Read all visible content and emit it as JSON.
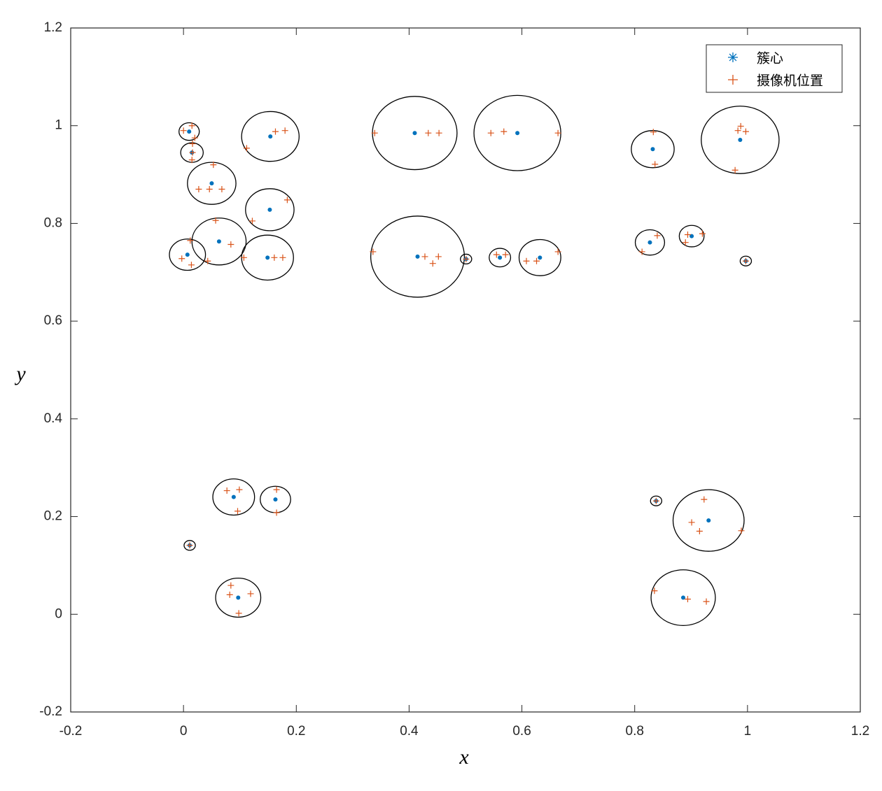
{
  "chart_data": {
    "type": "scatter",
    "xlabel": "x",
    "ylabel": "y",
    "xlim": [
      -0.2,
      1.2
    ],
    "ylim": [
      -0.2,
      1.2
    ],
    "xticks": [
      -0.2,
      0,
      0.2,
      0.4,
      0.6,
      0.8,
      1,
      1.2
    ],
    "yticks": [
      -0.2,
      0,
      0.2,
      0.4,
      0.6,
      0.8,
      1,
      1.2
    ],
    "legend": "upper right",
    "series": [
      {
        "name": "簇心",
        "color": "#0072bd",
        "marker": "*",
        "x": [
          0.01,
          0.015,
          0.154,
          0.05,
          0.153,
          0.063,
          0.007,
          0.149,
          0.41,
          0.592,
          0.415,
          0.501,
          0.561,
          0.632,
          0.832,
          0.987,
          0.827,
          0.901,
          0.997,
          0.089,
          0.163,
          0.011,
          0.097,
          0.838,
          0.931,
          0.886
        ],
        "y": [
          0.988,
          0.945,
          0.978,
          0.882,
          0.828,
          0.763,
          0.736,
          0.73,
          0.985,
          0.985,
          0.732,
          0.727,
          0.73,
          0.73,
          0.952,
          0.971,
          0.761,
          0.774,
          0.723,
          0.24,
          0.235,
          0.141,
          0.034,
          0.232,
          0.192,
          0.034
        ]
      },
      {
        "name": "摄像机位置",
        "color": "#d95319",
        "marker": "+",
        "x": [
          0,
          0.015,
          0.02,
          0.016,
          0.015,
          0.016,
          0.163,
          0.18,
          0.112,
          0.053,
          0.027,
          0.046,
          0.068,
          0.122,
          0.184,
          0.057,
          0.084,
          0.043,
          -0.003,
          0.012,
          0.014,
          0.107,
          0.161,
          0.176,
          0.339,
          0.434,
          0.453,
          0.545,
          0.568,
          0.664,
          0.336,
          0.428,
          0.442,
          0.452,
          0.501,
          0.555,
          0.571,
          0.608,
          0.626,
          0.664,
          0.833,
          0.836,
          0.988,
          0.997,
          0.983,
          0.978,
          0.813,
          0.84,
          0.894,
          0.92,
          0.89,
          0.997,
          0.077,
          0.099,
          0.096,
          0.165,
          0.165,
          0.011,
          0.084,
          0.082,
          0.119,
          0.098,
          0.838,
          0.923,
          0.901,
          0.915,
          0.989,
          0.835,
          0.894,
          0.927
        ],
        "y": [
          0.99,
          1.0,
          0.975,
          0.963,
          0.93,
          0.945,
          0.988,
          0.99,
          0.954,
          0.92,
          0.87,
          0.87,
          0.87,
          0.805,
          0.848,
          0.806,
          0.757,
          0.723,
          0.728,
          0.765,
          0.715,
          0.73,
          0.73,
          0.73,
          0.985,
          0.985,
          0.985,
          0.985,
          0.988,
          0.985,
          0.742,
          0.732,
          0.718,
          0.732,
          0.727,
          0.736,
          0.736,
          0.723,
          0.723,
          0.742,
          0.987,
          0.921,
          0.999,
          0.988,
          0.99,
          0.909,
          0.742,
          0.775,
          0.777,
          0.779,
          0.761,
          0.723,
          0.253,
          0.255,
          0.211,
          0.255,
          0.208,
          0.141,
          0.059,
          0.04,
          0.042,
          0.002,
          0.232,
          0.235,
          0.188,
          0.17,
          0.171,
          0.048,
          0.031,
          0.026
        ]
      }
    ],
    "circles": {
      "color": "#000000",
      "r": [
        0.018,
        0.02,
        0.051,
        0.043,
        0.043,
        0.048,
        0.032,
        0.046,
        0.075,
        0.077,
        0.083,
        0.01,
        0.019,
        0.037,
        0.038,
        0.069,
        0.026,
        0.022,
        0.01,
        0.037,
        0.027,
        0.01,
        0.04,
        0.01,
        0.063,
        0.057
      ]
    }
  }
}
